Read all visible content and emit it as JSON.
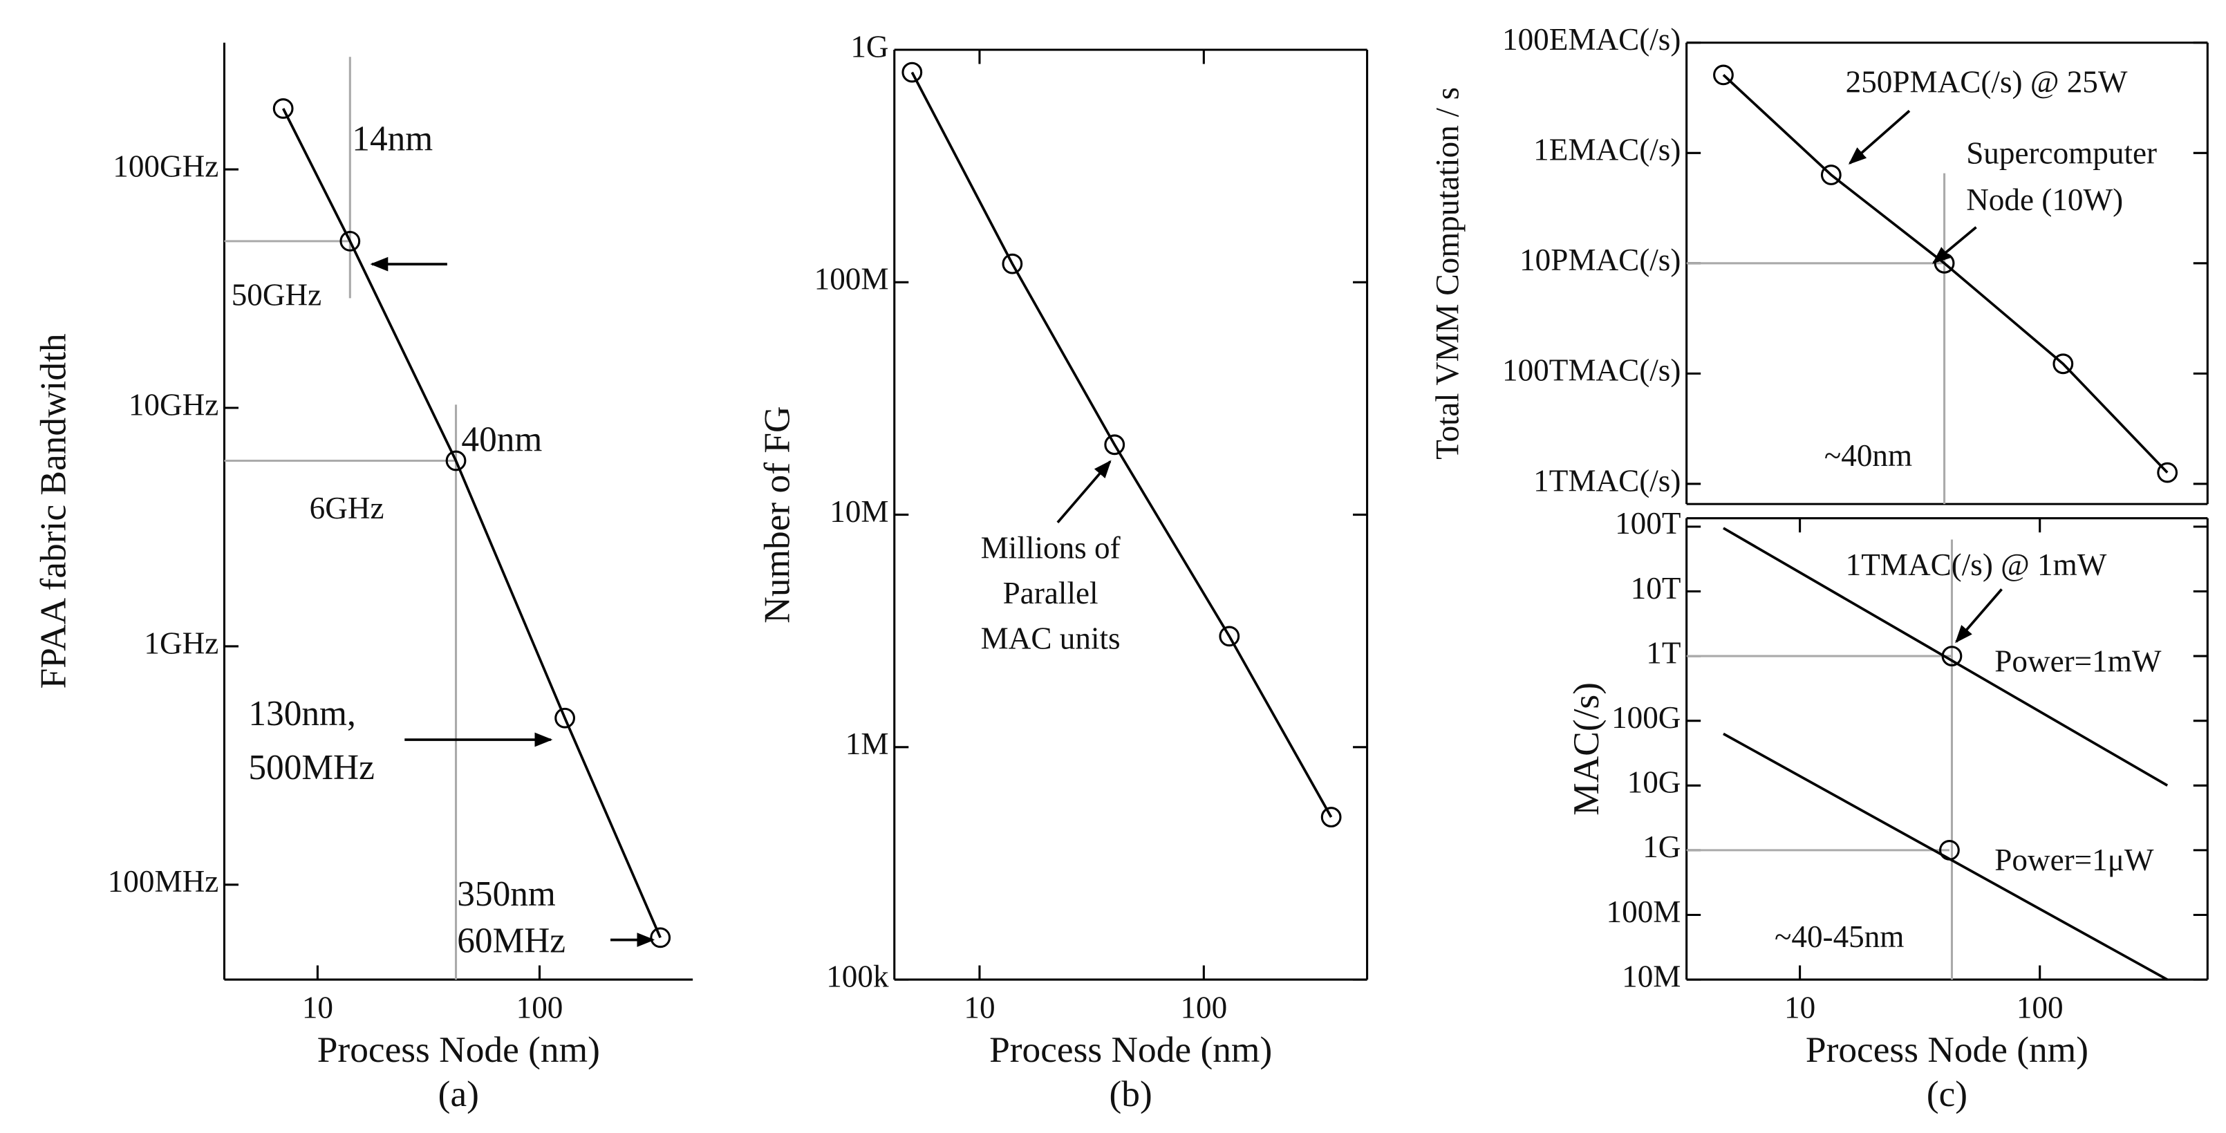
{
  "chart_data": [
    {
      "type": "line",
      "xlabel": "Process Node (nm)",
      "ylabel": "FPAA fabric Bandwidth",
      "caption": "(a)",
      "xlog": true,
      "ylog": true,
      "xlim": [
        3.8,
        490
      ],
      "ylim": [
        40000000,
        340000000000
      ],
      "xticks": [
        10,
        100
      ],
      "yticks": [
        {
          "value": 100000000,
          "label": "100MHz"
        },
        {
          "value": 1000000000,
          "label": "1GHz"
        },
        {
          "value": 10000000000,
          "label": "10GHz"
        },
        {
          "value": 100000000000,
          "label": "100GHz"
        }
      ],
      "series": [
        {
          "color": "#000000",
          "x": [
            7,
            14,
            42,
            130,
            350
          ],
          "values": [
            180000000000,
            50000000000,
            6000000000,
            500000000,
            60000000
          ]
        }
      ],
      "annotations": [
        "14nm",
        "50GHz",
        "40nm",
        "6GHz",
        "130nm,",
        "500MHz",
        "350nm",
        "60MHz"
      ]
    },
    {
      "type": "line",
      "xlabel": "Process Node (nm)",
      "ylabel": "Number of FG",
      "caption": "(b)",
      "xlog": true,
      "ylog": true,
      "xlim": [
        4.17,
        535
      ],
      "ylim": [
        100000,
        1000000000
      ],
      "xticks": [
        10,
        100
      ],
      "yticks": [
        {
          "value": 100000,
          "label": "100k"
        },
        {
          "value": 1000000,
          "label": "1M"
        },
        {
          "value": 10000000,
          "label": "10M"
        },
        {
          "value": 100000000,
          "label": "100M"
        },
        {
          "value": 1000000000,
          "label": "1G"
        }
      ],
      "series": [
        {
          "color": "#000000",
          "x": [
            5,
            14,
            40,
            130,
            370
          ],
          "values": [
            800000000,
            120000000,
            20000000,
            3000000,
            500000
          ]
        }
      ],
      "annotations": [
        "Millions of",
        "Parallel",
        "MAC units"
      ]
    },
    {
      "type": "line",
      "ylabel": "Total VMM Computation / s",
      "xlog": true,
      "ylog": true,
      "xlim": [
        3.37,
        500
      ],
      "ylim": [
        430000000000,
        1e+20
      ],
      "yticks": [
        {
          "value": 1000000000000,
          "label": "1TMAC(/s)"
        },
        {
          "value": 100000000000000,
          "label": "100TMAC(/s)"
        },
        {
          "value": 10000000000000000,
          "label": "10PMAC(/s)"
        },
        {
          "value": 1000000000000000000,
          "label": "1EMAC(/s)"
        },
        {
          "value": 1e+20,
          "label": "100EMAC(/s)"
        }
      ],
      "series": [
        {
          "color": "#000000",
          "x": [
            4.8,
            13.5,
            40,
            125,
            340
          ],
          "values": [
            26000000000000000000,
            400000000000000000,
            10000000000000000,
            150000000000000,
            1600000000000
          ]
        }
      ],
      "annotations": [
        "250PMAC(/s) @ 25W",
        "Supercomputer",
        "Node (10W)",
        "~40nm"
      ]
    },
    {
      "type": "line",
      "xlabel": "Process Node (nm)",
      "ylabel": "MAC(/s)",
      "caption": "(c)",
      "xlog": true,
      "ylog": true,
      "xlim": [
        3.37,
        500
      ],
      "ylim": [
        10000000,
        135000000000000
      ],
      "xticks": [
        10,
        100
      ],
      "yticks": [
        {
          "value": 10000000,
          "label": "10M"
        },
        {
          "value": 100000000,
          "label": "100M"
        },
        {
          "value": 1000000000,
          "label": "1G"
        },
        {
          "value": 10000000000,
          "label": "10G"
        },
        {
          "value": 100000000000,
          "label": "100G"
        },
        {
          "value": 1000000000000,
          "label": "1T"
        },
        {
          "value": 10000000000000,
          "label": "10T"
        },
        {
          "value": 100000000000000,
          "label": "100T"
        }
      ],
      "series": [
        {
          "name": "Power=1mW",
          "color": "#000000",
          "x": [
            4.8,
            340
          ],
          "values": [
            95000000000000,
            10000000000
          ],
          "point": {
            "x": 43,
            "value": 1000000000000
          }
        },
        {
          "name": "Power=1μW",
          "color": "#000000",
          "x": [
            4.8,
            340
          ],
          "values": [
            63000000000,
            10000000
          ],
          "point": {
            "x": 42,
            "value": 1000000000
          }
        }
      ],
      "annotations": [
        "1TMAC(/s) @ 1mW",
        "~40-45nm"
      ]
    }
  ]
}
